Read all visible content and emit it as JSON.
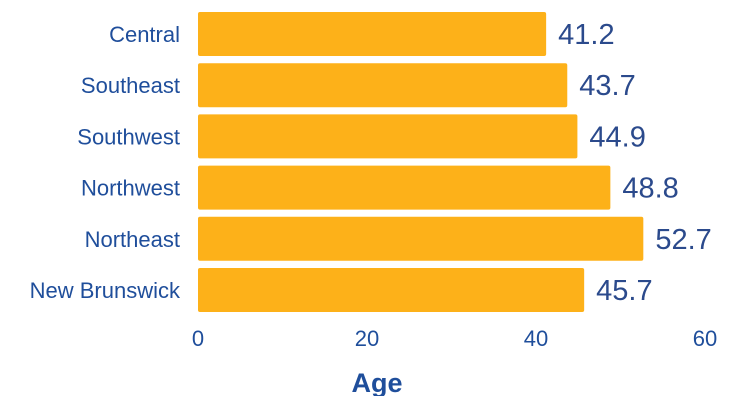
{
  "chart_data": {
    "type": "bar",
    "orientation": "horizontal",
    "categories": [
      "Central",
      "Southeast",
      "Southwest",
      "Northwest",
      "Northeast",
      "New Brunswick"
    ],
    "values": [
      41.2,
      43.7,
      44.9,
      48.8,
      52.7,
      45.7
    ],
    "value_labels": [
      "41.2",
      "43.7",
      "44.9",
      "48.8",
      "52.7",
      "45.7"
    ],
    "xlabel": "Age",
    "xlim": [
      0,
      60
    ],
    "xticks": [
      0,
      20,
      40,
      60
    ],
    "xtick_labels": [
      "0",
      "20",
      "40",
      "60"
    ],
    "grid": false,
    "legend": "none",
    "colors": {
      "bar": "#fdb119",
      "category_text": "#1f4e9b",
      "value_text": "#2b4a8c",
      "axis_text": "#1f4e9b"
    }
  }
}
